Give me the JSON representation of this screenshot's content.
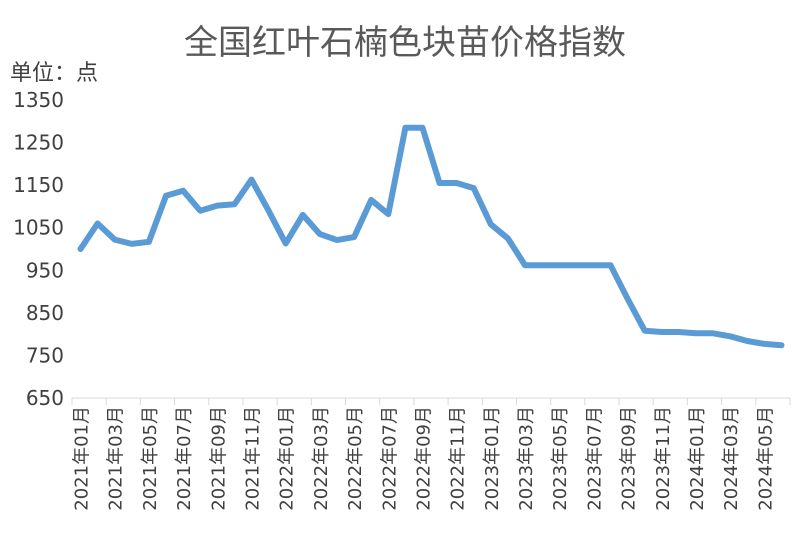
{
  "chart_data": {
    "type": "line",
    "title": "全国红叶石楠色块苗价格指数",
    "unit_label": "单位：点",
    "ylim": [
      650,
      1350
    ],
    "yticks": [
      650,
      750,
      850,
      950,
      1050,
      1150,
      1250,
      1350
    ],
    "grid": false,
    "legend": "none",
    "line_color": "#5b9bd5",
    "x": [
      "2021年01月",
      "2021年02月",
      "2021年03月",
      "2021年04月",
      "2021年05月",
      "2021年06月",
      "2021年07月",
      "2021年08月",
      "2021年09月",
      "2021年10月",
      "2021年11月",
      "2021年12月",
      "2022年01月",
      "2022年02月",
      "2022年03月",
      "2022年04月",
      "2022年05月",
      "2022年06月",
      "2022年07月",
      "2022年08月",
      "2022年09月",
      "2022年10月",
      "2022年11月",
      "2022年12月",
      "2023年01月",
      "2023年02月",
      "2023年03月",
      "2023年04月",
      "2023年05月",
      "2023年06月",
      "2023年07月",
      "2023年08月",
      "2023年09月",
      "2023年10月",
      "2023年11月",
      "2023年12月",
      "2024年01月",
      "2024年02月",
      "2024年03月",
      "2024年04月",
      "2024年05月",
      "2024年06月"
    ],
    "x_tick_labels": [
      "2021年01月",
      "2021年03月",
      "2021年05月",
      "2021年07月",
      "2021年09月",
      "2021年11月",
      "2022年01月",
      "2022年03月",
      "2022年05月",
      "2022年07月",
      "2022年09月",
      "2022年11月",
      "2023年01月",
      "2023年03月",
      "2023年05月",
      "2023年07月",
      "2023年09月",
      "2023年11月",
      "2024年01月",
      "2024年03月",
      "2024年05月"
    ],
    "series": [
      {
        "values": [
          1000,
          1060,
          1022,
          1012,
          1017,
          1125,
          1137,
          1090,
          1102,
          1105,
          1163,
          1090,
          1013,
          1080,
          1035,
          1021,
          1028,
          1115,
          1082,
          1285,
          1285,
          1155,
          1155,
          1143,
          1058,
          1025,
          962,
          962,
          962,
          962,
          962,
          962,
          883,
          808,
          805,
          805,
          802,
          802,
          795,
          784,
          777,
          774
        ]
      }
    ]
  }
}
